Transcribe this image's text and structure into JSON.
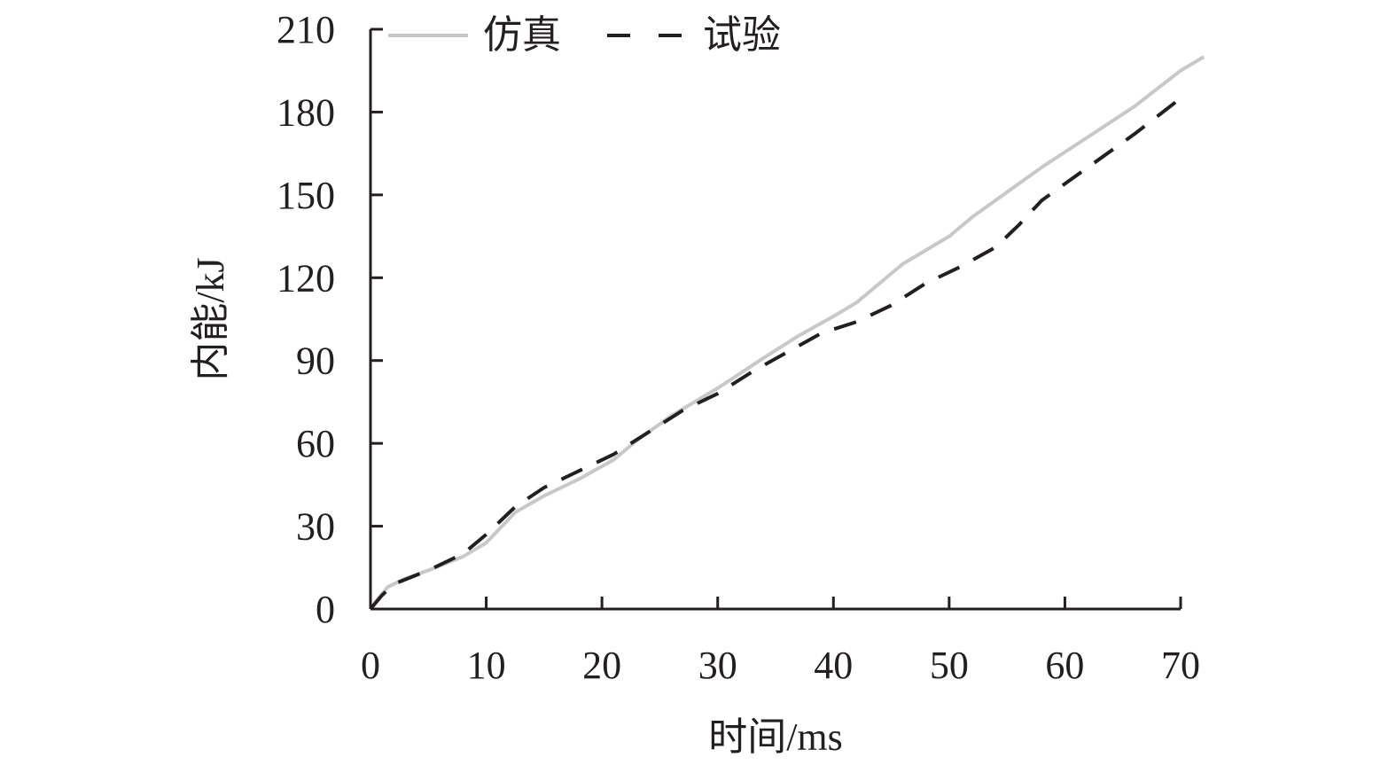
{
  "chart_data": {
    "type": "line",
    "title": "",
    "xlabel": "时间/ms",
    "ylabel": "内能/kJ",
    "xlim": [
      0,
      70
    ],
    "ylim": [
      0,
      210
    ],
    "x_ticks": [
      0,
      10,
      20,
      30,
      40,
      50,
      60,
      70
    ],
    "y_ticks": [
      0,
      30,
      60,
      90,
      120,
      150,
      180,
      210
    ],
    "x_tick_labels": [
      "0",
      "10",
      "20",
      "30",
      "40",
      "50",
      "60",
      "70"
    ],
    "y_tick_labels": [
      "0",
      "30",
      "60",
      "90",
      "120",
      "150",
      "180",
      "210"
    ],
    "grid": false,
    "legend_position": "top-left",
    "series": [
      {
        "name": "仿真",
        "color": "#c8c8c8",
        "line_style": "solid",
        "x": [
          0,
          0.5,
          1.5,
          3,
          5,
          8,
          10,
          12.5,
          15,
          18,
          21,
          23,
          26,
          30,
          34,
          37,
          40,
          42,
          44,
          46,
          50,
          52,
          55,
          58,
          62,
          66,
          70,
          72
        ],
        "y": [
          0,
          3,
          8,
          11,
          14,
          19,
          24,
          35,
          41,
          47,
          54,
          61,
          70,
          80,
          91,
          99,
          106,
          111,
          118,
          125,
          135,
          142,
          151,
          160,
          171,
          182,
          195,
          200
        ]
      },
      {
        "name": "试验",
        "color": "#231f20",
        "line_style": "dashed",
        "x": [
          0,
          1,
          2,
          5,
          8,
          10,
          12.5,
          15,
          18,
          21,
          24,
          27,
          30,
          33,
          36,
          39,
          42,
          45,
          48,
          51,
          54,
          56,
          58,
          62,
          66,
          70
        ],
        "y": [
          0,
          5,
          9,
          14,
          20,
          27,
          37,
          44,
          50,
          56,
          64,
          72,
          78,
          86,
          93,
          100,
          104,
          110,
          118,
          124,
          131,
          139,
          148,
          160,
          172,
          185
        ]
      }
    ]
  }
}
